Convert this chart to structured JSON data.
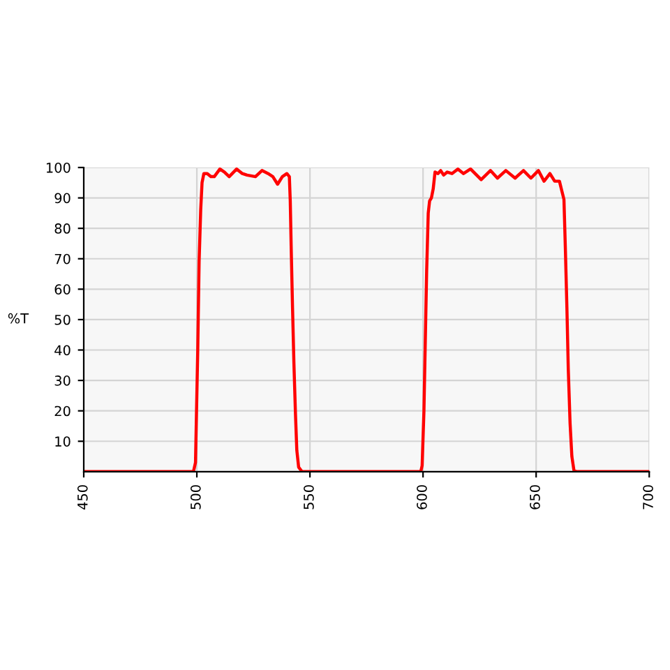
{
  "chart_data": {
    "type": "line",
    "ylabel": "%T",
    "series": [
      {
        "color": "#ff0000",
        "x": [
          450,
          498.5,
          499.4,
          500.4,
          501.0,
          501.7,
          502.3,
          503.1,
          504.6,
          506.2,
          507.7,
          510.2,
          512.2,
          514.3,
          517.6,
          520.1,
          522.2,
          525.9,
          528.8,
          531.5,
          533.6,
          535.7,
          537.8,
          539.8,
          540.9,
          541.3,
          541.7,
          542.3,
          542.9,
          543.6,
          544.2,
          545.0,
          546.5,
          599.0,
          599.6,
          600.4,
          601.0,
          601.6,
          602.3,
          602.9,
          603.7,
          604.5,
          605.3,
          606.6,
          607.8,
          609.1,
          610.7,
          612.8,
          615.4,
          617.9,
          621.0,
          625.7,
          629.8,
          632.9,
          636.6,
          640.7,
          644.4,
          647.7,
          651.0,
          653.5,
          656.1,
          658.2,
          660.3,
          661.3,
          662.3,
          662.9,
          663.6,
          664.2,
          665.0,
          665.8,
          666.7,
          667.9,
          700
        ],
        "values": [
          0,
          0,
          3,
          40,
          69,
          86,
          95,
          98,
          98,
          97,
          97,
          99.5,
          98.5,
          97,
          99.5,
          98,
          97.5,
          97,
          99,
          98,
          97,
          94.5,
          97,
          98,
          97,
          89,
          74,
          54,
          36,
          19,
          7,
          1.5,
          0,
          0,
          2,
          20,
          43,
          66,
          85,
          89,
          90,
          93,
          98.5,
          98,
          99,
          97.5,
          98.5,
          98,
          99.5,
          98,
          99.5,
          96,
          99,
          96.5,
          99,
          96.5,
          99,
          96.5,
          99,
          95.5,
          98,
          95.5,
          95.5,
          92.5,
          89.5,
          74,
          54,
          34,
          16,
          5,
          0.5,
          0,
          0
        ]
      }
    ],
    "xlim": [
      450,
      700
    ],
    "xticks": [
      450,
      500,
      550,
      600,
      650,
      700
    ],
    "ylim": [
      0,
      100
    ],
    "yticks": [
      10,
      20,
      30,
      40,
      50,
      60,
      70,
      80,
      90,
      100
    ],
    "grid": true,
    "marker": "none",
    "line_style": "solid"
  }
}
